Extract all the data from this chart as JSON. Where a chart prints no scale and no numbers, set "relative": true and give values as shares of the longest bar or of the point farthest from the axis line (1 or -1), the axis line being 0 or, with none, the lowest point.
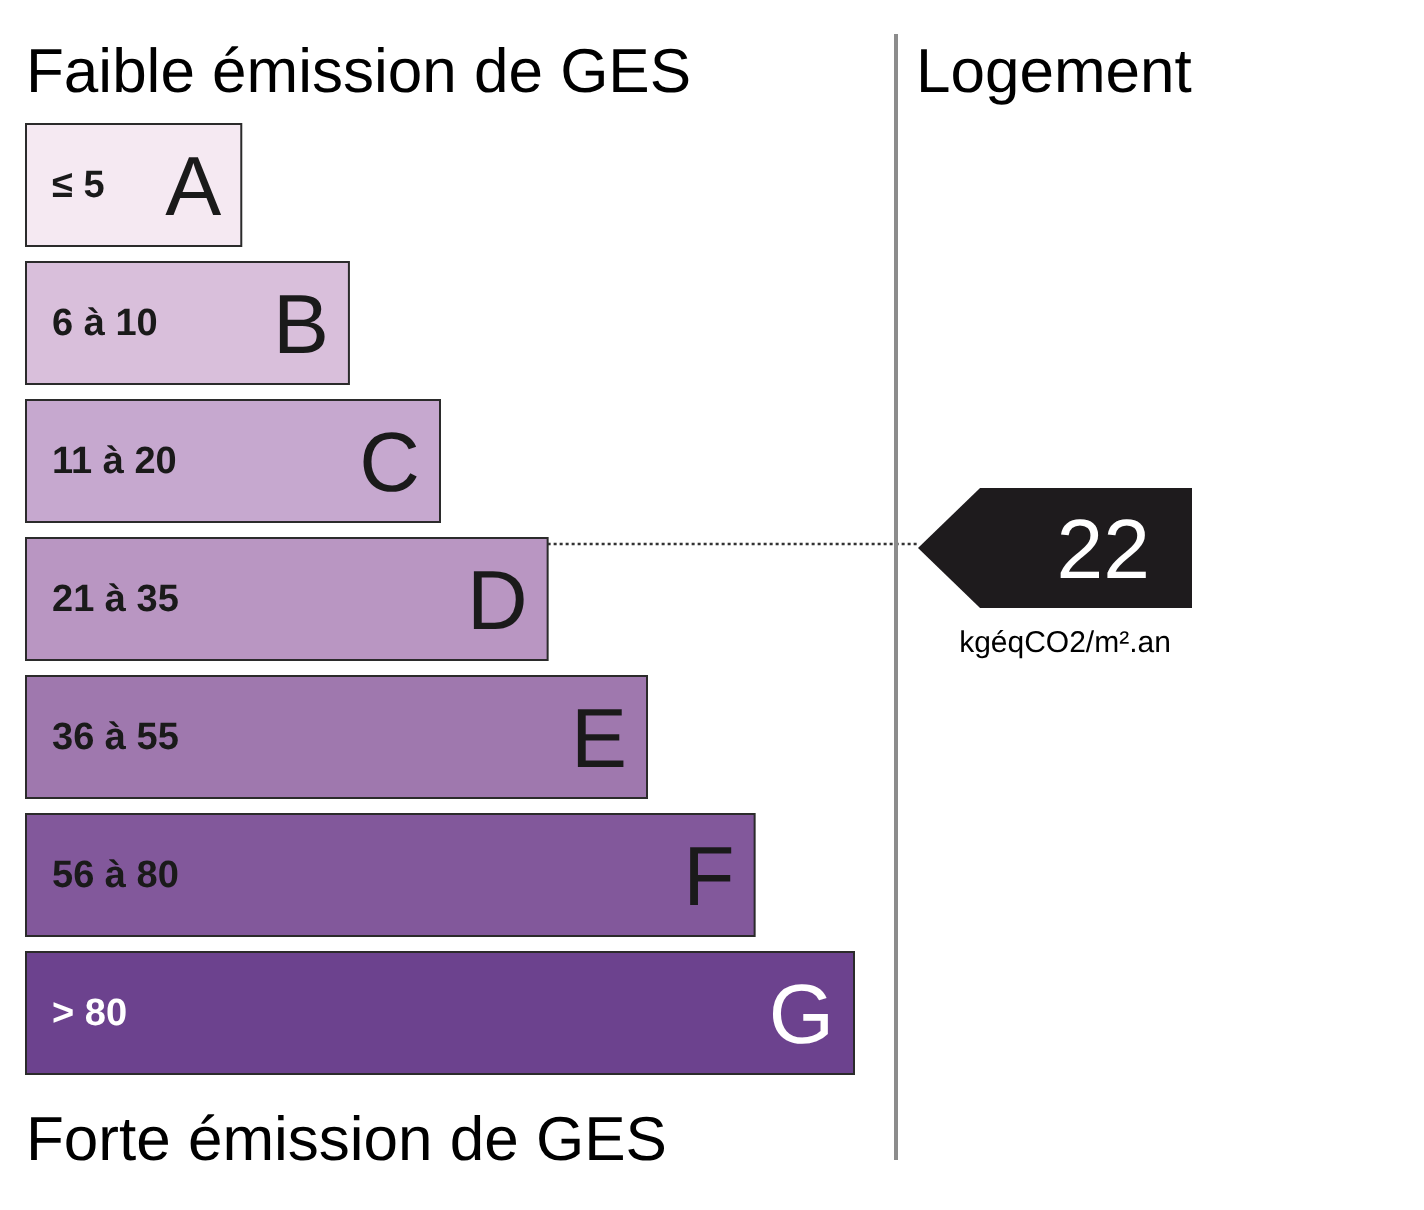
{
  "chart_data": {
    "type": "bar",
    "orientation": "horizontal",
    "relative": true,
    "title": "Faible émission de GES",
    "categories": [
      "A",
      "B",
      "C",
      "D",
      "E",
      "F",
      "G"
    ],
    "values": [
      0.26,
      0.39,
      0.5,
      0.63,
      0.75,
      0.88,
      1
    ],
    "colors": [
      "#f5e9f2",
      "#d9bfdb",
      "#c6a8cf",
      "#b996c2",
      "#9f78ae",
      "#82589b",
      "#6c428e"
    ],
    "annotations": [
      "≤ 5",
      "6 à 10",
      "11 à 20",
      "21 à 35",
      "36 à 55",
      "56 à 80",
      "> 80",
      "22",
      "kgéqCO2/m².an",
      "Logement",
      "Forte émission de GES"
    ]
  }
}
